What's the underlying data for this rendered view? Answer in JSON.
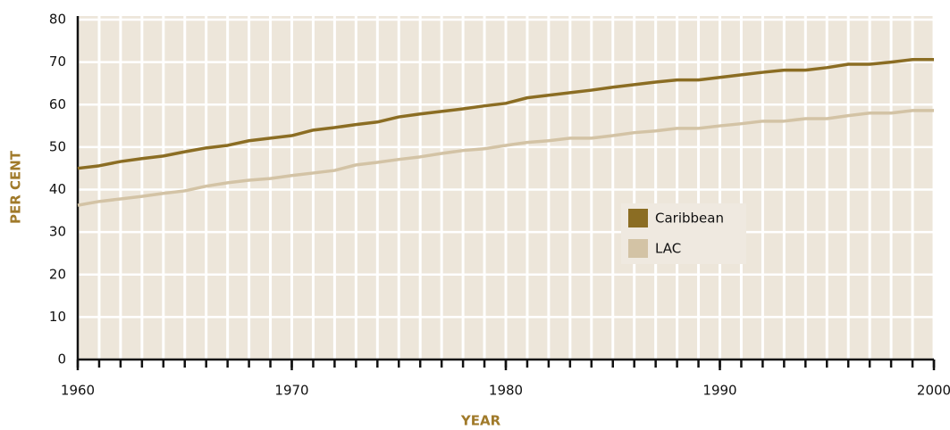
{
  "chart_data": {
    "type": "line",
    "x": [
      1960,
      1961,
      1962,
      1963,
      1964,
      1965,
      1966,
      1967,
      1968,
      1969,
      1970,
      1971,
      1972,
      1973,
      1974,
      1975,
      1976,
      1977,
      1978,
      1979,
      1980,
      1981,
      1982,
      1983,
      1984,
      1985,
      1986,
      1987,
      1988,
      1989,
      1990,
      1991,
      1992,
      1993,
      1994,
      1995,
      1996,
      1997,
      1998,
      1999,
      2000
    ],
    "series": [
      {
        "name": "Caribbean",
        "color": "#8b6d23",
        "values": [
          45.0,
          45.6,
          46.6,
          47.3,
          47.9,
          48.9,
          49.8,
          50.4,
          51.5,
          52.1,
          52.7,
          54.0,
          54.6,
          55.3,
          55.9,
          57.1,
          57.8,
          58.4,
          59.0,
          59.7,
          60.3,
          61.6,
          62.2,
          62.8,
          63.4,
          64.1,
          64.7,
          65.3,
          65.8,
          65.8,
          66.4,
          67.0,
          67.6,
          68.1,
          68.1,
          68.7,
          69.5,
          69.5,
          70.0,
          70.6,
          70.6
        ]
      },
      {
        "name": "LAC",
        "color": "#d3c3a5",
        "values": [
          36.3,
          37.2,
          37.8,
          38.4,
          39.1,
          39.7,
          40.8,
          41.6,
          42.2,
          42.6,
          43.3,
          43.9,
          44.5,
          45.8,
          46.4,
          47.1,
          47.7,
          48.5,
          49.2,
          49.6,
          50.4,
          51.1,
          51.5,
          52.1,
          52.1,
          52.7,
          53.4,
          53.8,
          54.4,
          54.4,
          55.0,
          55.5,
          56.1,
          56.1,
          56.7,
          56.7,
          57.4,
          58.0,
          58.0,
          58.6,
          58.6
        ]
      }
    ],
    "xlabel": "YEAR",
    "ylabel": "PER CENT",
    "xlim": [
      1960,
      2000
    ],
    "xticks": [
      1960,
      1970,
      1980,
      1990,
      2000
    ],
    "ylim": [
      0,
      80
    ],
    "yticks": [
      0,
      10,
      20,
      30,
      40,
      50,
      60,
      70,
      80
    ],
    "grid": true,
    "legend": "center-right"
  }
}
